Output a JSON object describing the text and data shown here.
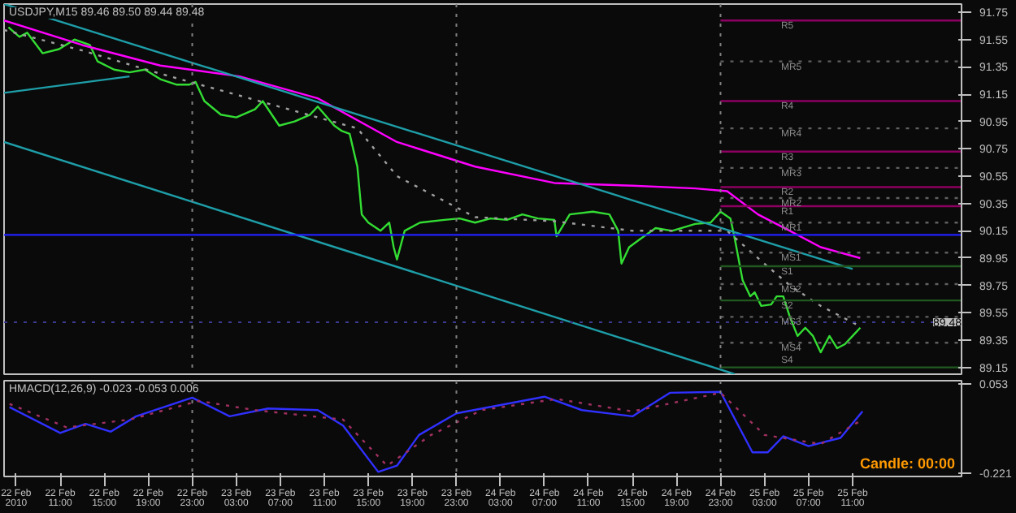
{
  "chart_data": [
    {
      "type": "line",
      "title": "USDJPY,M15  89.46 89.50 89.44 89.48",
      "xlim": [
        "2010-02-22T05:54",
        "2010-02-25T20:54"
      ],
      "ylim": [
        89.1,
        91.81
      ],
      "yticks": [
        91.75,
        91.55,
        91.35,
        91.15,
        90.95,
        90.75,
        90.55,
        90.35,
        90.15,
        89.95,
        89.75,
        89.55,
        89.35,
        89.15
      ],
      "tick_labels": "y",
      "grid": false,
      "series": [
        {
          "color": "#33dd33",
          "x": [
            "2010-02-22T06:18",
            "2010-02-22T07:18",
            "2010-02-22T08:00",
            "2010-02-22T09:24",
            "2010-02-22T10:54",
            "2010-02-22T12:18",
            "2010-02-22T13:42",
            "2010-02-22T14:24",
            "2010-02-22T15:54",
            "2010-02-22T17:18",
            "2010-02-22T18:42",
            "2010-02-22T20:06",
            "2010-02-22T21:36",
            "2010-02-22T22:42",
            "2010-02-22T23:18",
            "2010-02-23T00:06",
            "2010-02-23T01:36",
            "2010-02-23T03:00",
            "2010-02-23T04:42",
            "2010-02-23T05:24",
            "2010-02-23T06:54",
            "2010-02-23T08:18",
            "2010-02-23T09:42",
            "2010-02-23T10:24",
            "2010-02-23T11:54",
            "2010-02-23T12:36",
            "2010-02-23T13:18",
            "2010-02-23T14:00",
            "2010-02-23T14:24",
            "2010-02-23T15:00",
            "2010-02-23T16:06",
            "2010-02-23T16:54",
            "2010-02-23T17:18",
            "2010-02-23T17:36",
            "2010-02-23T18:18",
            "2010-02-23T19:42",
            "2010-02-23T21:54",
            "2010-02-23T23:18",
            "2010-02-24T00:42",
            "2010-02-24T02:06",
            "2010-02-24T03:36",
            "2010-02-24T05:00",
            "2010-02-24T06:24",
            "2010-02-24T07:54",
            "2010-02-24T08:06",
            "2010-02-24T09:18",
            "2010-02-24T11:24",
            "2010-02-24T12:54",
            "2010-02-24T13:42",
            "2010-02-24T14:00",
            "2010-02-24T14:42",
            "2010-02-24T15:42",
            "2010-02-24T17:06",
            "2010-02-24T18:36",
            "2010-02-24T20:42",
            "2010-02-24T22:06",
            "2010-02-24T23:00",
            "2010-02-24T23:54",
            "2010-02-25T00:18",
            "2010-02-25T01:00",
            "2010-02-25T01:42",
            "2010-02-25T02:06",
            "2010-02-25T02:42",
            "2010-02-25T03:36",
            "2010-02-25T04:06",
            "2010-02-25T04:42",
            "2010-02-25T05:18",
            "2010-02-25T06:00",
            "2010-02-25T06:42",
            "2010-02-25T07:24",
            "2010-02-25T08:06",
            "2010-02-25T08:54",
            "2010-02-25T09:36",
            "2010-02-25T10:18",
            "2010-02-25T11:00",
            "2010-02-25T11:42"
          ],
          "values": [
            91.64,
            91.57,
            91.6,
            91.45,
            91.48,
            91.55,
            91.51,
            91.39,
            91.33,
            91.31,
            91.33,
            91.26,
            91.22,
            91.22,
            91.24,
            91.1,
            91.0,
            90.98,
            91.04,
            91.1,
            90.92,
            90.95,
            91.0,
            91.06,
            90.92,
            90.88,
            90.86,
            90.62,
            90.27,
            90.21,
            90.15,
            90.21,
            90.03,
            89.94,
            90.15,
            90.21,
            90.23,
            90.24,
            90.21,
            90.24,
            90.23,
            90.27,
            90.24,
            90.23,
            90.11,
            90.27,
            90.29,
            90.27,
            90.15,
            89.91,
            90.03,
            90.09,
            90.17,
            90.15,
            90.2,
            90.21,
            90.29,
            90.24,
            90.09,
            89.79,
            89.67,
            89.7,
            89.6,
            89.61,
            89.67,
            89.67,
            89.52,
            89.38,
            89.44,
            89.38,
            89.26,
            89.38,
            89.29,
            89.32,
            89.38,
            89.44
          ]
        },
        {
          "color": "#ff00ff",
          "x": [
            "2010-02-22T05:54",
            "2010-02-22T13:00",
            "2010-02-22T20:06",
            "2010-02-23T03:18",
            "2010-02-23T10:24",
            "2010-02-23T17:36",
            "2010-02-24T00:42",
            "2010-02-24T07:54",
            "2010-02-24T15:00",
            "2010-02-24T20:42",
            "2010-02-24T23:36",
            "2010-02-25T02:24",
            "2010-02-25T05:18",
            "2010-02-25T08:06",
            "2010-02-25T11:42"
          ],
          "values": [
            91.69,
            91.51,
            91.36,
            91.28,
            91.12,
            90.8,
            90.62,
            90.5,
            90.48,
            90.46,
            90.44,
            90.27,
            90.15,
            90.03,
            89.95
          ]
        },
        {
          "color": "#a0a0a0",
          "line_style": "dotted",
          "x": [
            "2010-02-22T05:54",
            "2010-02-22T13:00",
            "2010-02-22T20:06",
            "2010-02-23T03:18",
            "2010-02-23T10:24",
            "2010-02-23T14:00",
            "2010-02-23T17:36",
            "2010-02-24T00:42",
            "2010-02-24T07:54",
            "2010-02-24T15:00",
            "2010-02-24T23:36",
            "2010-02-25T02:24",
            "2010-02-25T05:18",
            "2010-02-25T08:06",
            "2010-02-25T11:42"
          ],
          "values": [
            91.62,
            91.47,
            91.3,
            91.14,
            90.98,
            90.9,
            90.55,
            90.25,
            90.22,
            90.15,
            90.15,
            89.95,
            89.75,
            89.6,
            89.45
          ]
        },
        {
          "color": "#1e9ea8",
          "x": [
            "2010-02-22T05:54",
            "2010-02-25T11:00"
          ],
          "values": [
            91.81,
            89.87
          ]
        },
        {
          "color": "#1e9ea8",
          "x": [
            "2010-02-22T05:54",
            "2010-02-25T00:18"
          ],
          "values": [
            90.8,
            89.1
          ]
        },
        {
          "color": "#1e9ea8",
          "x": [
            "2010-02-22T05:54",
            "2010-02-22T17:18"
          ],
          "values": [
            91.16,
            91.28
          ]
        },
        {
          "color": "#8b0060",
          "x": [
            "2010-02-24T23:00",
            "2010-02-25T20:54"
          ],
          "values": [
            91.69,
            91.69
          ]
        },
        {
          "color": "#606060",
          "line_style": "dotted",
          "x": [
            "2010-02-24T23:00",
            "2010-02-25T20:54"
          ],
          "values": [
            91.39,
            91.39
          ]
        },
        {
          "color": "#8b0060",
          "x": [
            "2010-02-24T23:00",
            "2010-02-25T20:54"
          ],
          "values": [
            91.1,
            91.1
          ]
        },
        {
          "color": "#606060",
          "line_style": "dotted",
          "x": [
            "2010-02-24T23:00",
            "2010-02-25T20:54"
          ],
          "values": [
            90.9,
            90.9
          ]
        },
        {
          "color": "#8b0060",
          "x": [
            "2010-02-24T23:00",
            "2010-02-25T20:54"
          ],
          "values": [
            90.73,
            90.73
          ]
        },
        {
          "color": "#606060",
          "line_style": "dotted",
          "x": [
            "2010-02-24T23:00",
            "2010-02-25T20:54"
          ],
          "values": [
            90.61,
            90.61
          ]
        },
        {
          "color": "#8b0060",
          "x": [
            "2010-02-24T23:00",
            "2010-02-25T20:54"
          ],
          "values": [
            90.47,
            90.47
          ]
        },
        {
          "color": "#606060",
          "line_style": "dotted",
          "x": [
            "2010-02-24T23:00",
            "2010-02-25T20:54"
          ],
          "values": [
            90.39,
            90.39
          ]
        },
        {
          "color": "#8b0060",
          "x": [
            "2010-02-24T23:00",
            "2010-02-25T20:54"
          ],
          "values": [
            90.33,
            90.33
          ]
        },
        {
          "color": "#606060",
          "line_style": "dotted",
          "x": [
            "2010-02-24T23:00",
            "2010-02-25T20:54"
          ],
          "values": [
            90.21,
            90.21
          ]
        },
        {
          "color": "#2020ff",
          "x": [
            "2010-02-22T05:54",
            "2010-02-25T20:54"
          ],
          "values": [
            90.12,
            90.12
          ]
        },
        {
          "color": "#606060",
          "line_style": "dotted",
          "x": [
            "2010-02-24T23:00",
            "2010-02-25T20:54"
          ],
          "values": [
            89.99,
            89.99
          ]
        },
        {
          "color": "#205820",
          "x": [
            "2010-02-24T23:00",
            "2010-02-25T20:54"
          ],
          "values": [
            89.89,
            89.89
          ]
        },
        {
          "color": "#606060",
          "line_style": "dotted",
          "x": [
            "2010-02-24T23:00",
            "2010-02-25T20:54"
          ],
          "values": [
            89.76,
            89.76
          ]
        },
        {
          "color": "#205820",
          "x": [
            "2010-02-24T23:00",
            "2010-02-25T20:54"
          ],
          "values": [
            89.64,
            89.64
          ]
        },
        {
          "color": "#606060",
          "line_style": "dotted",
          "x": [
            "2010-02-24T23:00",
            "2010-02-25T20:54"
          ],
          "values": [
            89.52,
            89.52
          ]
        },
        {
          "color": "#606060",
          "line_style": "dotted",
          "x": [
            "2010-02-24T23:00",
            "2010-02-25T20:54"
          ],
          "values": [
            89.33,
            89.33
          ]
        },
        {
          "color": "#205820",
          "x": [
            "2010-02-24T23:00",
            "2010-02-25T20:54"
          ],
          "values": [
            89.15,
            89.15
          ]
        }
      ],
      "ref_lines": [
        {
          "axis": "x",
          "value": "2010-02-22T23:00",
          "color": "#808080",
          "line_style": "dotted"
        },
        {
          "axis": "x",
          "value": "2010-02-23T23:00",
          "color": "#808080",
          "line_style": "dotted"
        },
        {
          "axis": "x",
          "value": "2010-02-24T23:00",
          "color": "#808080",
          "line_style": "dotted"
        },
        {
          "axis": "y",
          "value": 89.48,
          "label": "89.48",
          "color": "#3a3a90",
          "line_style": "dotted"
        }
      ],
      "annotations": [
        {
          "text": "R5",
          "x": "2010-02-25T04:30",
          "y": 91.69
        },
        {
          "text": "MR5",
          "x": "2010-02-25T04:30",
          "y": 91.39
        },
        {
          "text": "R4",
          "x": "2010-02-25T04:30",
          "y": 91.1
        },
        {
          "text": "MR4",
          "x": "2010-02-25T04:30",
          "y": 90.9
        },
        {
          "text": "R3",
          "x": "2010-02-25T04:30",
          "y": 90.73
        },
        {
          "text": "MR3",
          "x": "2010-02-25T04:30",
          "y": 90.61
        },
        {
          "text": "R2",
          "x": "2010-02-25T04:30",
          "y": 90.47
        },
        {
          "text": "MR2",
          "x": "2010-02-25T04:30",
          "y": 90.39
        },
        {
          "text": "R1",
          "x": "2010-02-25T04:30",
          "y": 90.33
        },
        {
          "text": "MR1",
          "x": "2010-02-25T04:30",
          "y": 90.21
        },
        {
          "text": "MS1",
          "x": "2010-02-25T04:30",
          "y": 89.99
        },
        {
          "text": "S1",
          "x": "2010-02-25T04:30",
          "y": 89.89
        },
        {
          "text": "MS2",
          "x": "2010-02-25T04:30",
          "y": 89.76
        },
        {
          "text": "S2",
          "x": "2010-02-25T04:30",
          "y": 89.64
        },
        {
          "text": "MS3",
          "x": "2010-02-25T04:30",
          "y": 89.52
        },
        {
          "text": "MS4",
          "x": "2010-02-25T04:30",
          "y": 89.33
        },
        {
          "text": "S4",
          "x": "2010-02-25T04:30",
          "y": 89.15
        }
      ]
    },
    {
      "type": "line",
      "title": "HMACD(12,26,9) -0.023 -0.053 0.006",
      "xlim": [
        "2010-02-22T05:54",
        "2010-02-25T20:54"
      ],
      "ylim": [
        -0.23,
        0.063
      ],
      "yticks": [
        0.053,
        -0.221
      ],
      "grid": false,
      "xticks": [
        {
          "value": "2010-02-22T07:00",
          "label": "22 Feb 2010"
        },
        {
          "value": "2010-02-22T11:00",
          "label": "22 Feb 11:00"
        },
        {
          "value": "2010-02-22T15:00",
          "label": "22 Feb 15:00"
        },
        {
          "value": "2010-02-22T19:00",
          "label": "22 Feb 19:00"
        },
        {
          "value": "2010-02-22T23:00",
          "label": "22 Feb 23:00"
        },
        {
          "value": "2010-02-23T03:00",
          "label": "23 Feb 03:00"
        },
        {
          "value": "2010-02-23T07:00",
          "label": "23 Feb 07:00"
        },
        {
          "value": "2010-02-23T11:00",
          "label": "23 Feb 11:00"
        },
        {
          "value": "2010-02-23T15:00",
          "label": "23 Feb 15:00"
        },
        {
          "value": "2010-02-23T19:00",
          "label": "23 Feb 19:00"
        },
        {
          "value": "2010-02-23T23:00",
          "label": "23 Feb 23:00"
        },
        {
          "value": "2010-02-24T03:00",
          "label": "24 Feb 03:00"
        },
        {
          "value": "2010-02-24T07:00",
          "label": "24 Feb 07:00"
        },
        {
          "value": "2010-02-24T11:00",
          "label": "24 Feb 11:00"
        },
        {
          "value": "2010-02-24T15:00",
          "label": "24 Feb 15:00"
        },
        {
          "value": "2010-02-24T19:00",
          "label": "24 Feb 19:00"
        },
        {
          "value": "2010-02-24T23:00",
          "label": "24 Feb 23:00"
        },
        {
          "value": "2010-02-25T03:00",
          "label": "25 Feb 03:00"
        },
        {
          "value": "2010-02-25T07:00",
          "label": "25 Feb 07:00"
        },
        {
          "value": "2010-02-25T11:00",
          "label": "25 Feb 11:00"
        }
      ],
      "series": [
        {
          "color": "#3030ff",
          "x": [
            "2010-02-22T06:24",
            "2010-02-22T11:00",
            "2010-02-22T13:18",
            "2010-02-22T15:36",
            "2010-02-22T17:54",
            "2010-02-22T23:00",
            "2010-02-23T02:24",
            "2010-02-23T05:54",
            "2010-02-23T10:24",
            "2010-02-23T12:42",
            "2010-02-23T15:54",
            "2010-02-23T17:36",
            "2010-02-23T19:36",
            "2010-02-23T23:00",
            "2010-02-24T07:00",
            "2010-02-24T10:24",
            "2010-02-24T15:00",
            "2010-02-24T18:24",
            "2010-02-24T23:00",
            "2010-02-25T01:54",
            "2010-02-25T03:18",
            "2010-02-25T04:42",
            "2010-02-25T07:00",
            "2010-02-25T09:54",
            "2010-02-25T11:54"
          ],
          "values": [
            -0.018,
            -0.097,
            -0.069,
            -0.093,
            -0.046,
            0.011,
            -0.046,
            -0.022,
            -0.027,
            -0.074,
            -0.216,
            -0.197,
            -0.103,
            -0.037,
            0.014,
            -0.027,
            -0.046,
            0.026,
            0.029,
            -0.156,
            -0.156,
            -0.107,
            -0.137,
            -0.112,
            -0.031
          ]
        },
        {
          "color": "#a03060",
          "line_style": "dotted",
          "x": [
            "2010-02-22T06:24",
            "2010-02-22T11:36",
            "2010-02-22T17:18",
            "2010-02-22T23:36",
            "2010-02-23T04:42",
            "2010-02-23T12:42",
            "2010-02-23T16:42",
            "2010-02-23T20:42",
            "2010-02-24T01:18",
            "2010-02-24T08:06",
            "2010-02-24T15:00",
            "2010-02-24T23:00",
            "2010-02-25T03:00",
            "2010-02-25T08:06",
            "2010-02-25T11:54"
          ],
          "values": [
            -0.008,
            -0.08,
            -0.056,
            0.001,
            -0.027,
            -0.056,
            -0.197,
            -0.103,
            -0.027,
            0.007,
            -0.031,
            0.026,
            -0.103,
            -0.131,
            -0.056
          ]
        }
      ],
      "ref_lines": [
        {
          "axis": "x",
          "value": "2010-02-22T23:00",
          "color": "#808080",
          "line_style": "dotted"
        },
        {
          "axis": "x",
          "value": "2010-02-23T23:00",
          "color": "#808080",
          "line_style": "dotted"
        },
        {
          "axis": "x",
          "value": "2010-02-24T23:00",
          "color": "#808080",
          "line_style": "dotted"
        }
      ],
      "annotations": [
        "Candle: 00:00"
      ]
    }
  ]
}
